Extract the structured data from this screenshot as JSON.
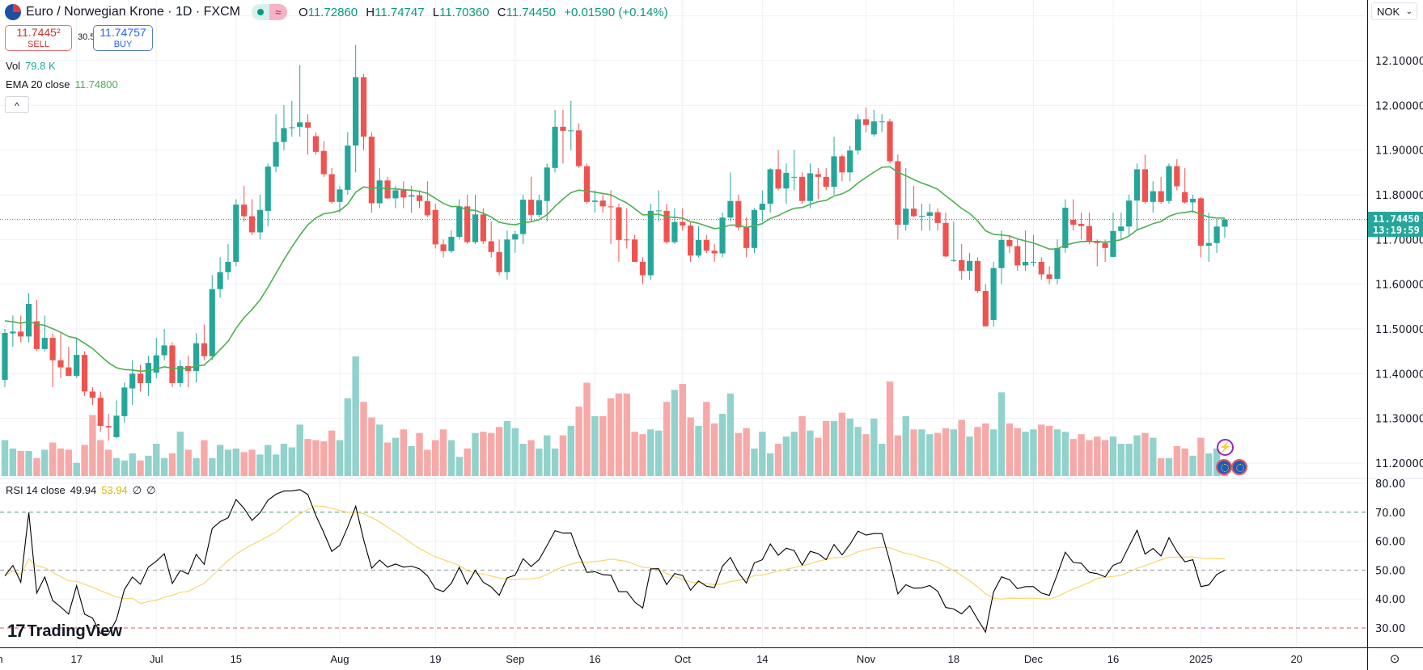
{
  "header": {
    "symbol_title": "Euro / Norwegian Krone · 1D · FXCM",
    "symbol_icon": "eur-nok-flag-icon",
    "market_status_icon": "market-open-dot-icon",
    "data_badge_icon": "delayed-data-wave-icon",
    "ohlc": {
      "o_label": "O",
      "o": "11.72860",
      "h_label": "H",
      "h": "11.74747",
      "l_label": "L",
      "l": "11.70360",
      "c_label": "C",
      "c": "11.74450",
      "change": "+0.01590 (+0.14%)"
    }
  },
  "trade": {
    "sell_price": "11.7445²",
    "sell_label": "SELL",
    "spread": "30.5",
    "buy_price": "11.74757",
    "buy_label": "BUY"
  },
  "legends": {
    "vol_label": "Vol",
    "vol_value": "79.8 K",
    "ema_label": "EMA 20 close",
    "ema_value": "11.74800",
    "rsi_label": "RSI 14 close",
    "rsi_value": "49.94",
    "rsi_ma_value": "53.94",
    "rsi_extra1": "∅",
    "rsi_extra2": "∅"
  },
  "collapse_icon": "^",
  "currency_select": "NOK",
  "current_price": {
    "price": "11.74450",
    "countdown": "13:19:59"
  },
  "brand": "TradingView",
  "settings_icon": "⊙",
  "event_icon": "⚡",
  "colors": {
    "up": "#26a69a",
    "down": "#ef5350",
    "ema": "#4caf50",
    "rsi": "#000000",
    "rsi_ma": "#f5d76e",
    "vol_up": "#92d2cc",
    "vol_down": "#f7a9a7"
  },
  "chart_data": {
    "type": "candlestick",
    "price_axis": {
      "ticks": [
        "12.10000",
        "12.00000",
        "11.90000",
        "11.80000",
        "11.70000",
        "11.60000",
        "11.50000",
        "11.40000",
        "11.30000",
        "11.20000"
      ],
      "range": [
        11.2,
        12.1
      ]
    },
    "rsi_axis": {
      "ticks": [
        "80.00",
        "70.00",
        "60.00",
        "50.00",
        "40.00",
        "30.00"
      ],
      "range": [
        30,
        80
      ],
      "bands": [
        70,
        50,
        30
      ]
    },
    "x_ticks": [
      {
        "label": "Jun",
        "bar": -1.3
      },
      {
        "label": "17",
        "bar": 9
      },
      {
        "label": "Jul",
        "bar": 19
      },
      {
        "label": "15",
        "bar": 29
      },
      {
        "label": "Aug",
        "bar": 42
      },
      {
        "label": "19",
        "bar": 54
      },
      {
        "label": "Sep",
        "bar": 64
      },
      {
        "label": "16",
        "bar": 74
      },
      {
        "label": "Oct",
        "bar": 85
      },
      {
        "label": "14",
        "bar": 95
      },
      {
        "label": "Nov",
        "bar": 108
      },
      {
        "label": "18",
        "bar": 119
      },
      {
        "label": "Dec",
        "bar": 129
      },
      {
        "label": "16",
        "bar": 139
      },
      {
        "label": "2025",
        "bar": 150
      },
      {
        "label": "20",
        "bar": 162
      }
    ],
    "ohlc": [
      [
        11.386,
        11.5,
        11.37,
        11.491
      ],
      [
        11.49,
        11.53,
        11.46,
        11.494
      ],
      [
        11.494,
        11.53,
        11.47,
        11.483
      ],
      [
        11.483,
        11.58,
        11.47,
        11.556
      ],
      [
        11.517,
        11.565,
        11.45,
        11.455
      ],
      [
        11.455,
        11.53,
        11.45,
        11.48
      ],
      [
        11.48,
        11.49,
        11.37,
        11.43
      ],
      [
        11.43,
        11.49,
        11.39,
        11.414
      ],
      [
        11.414,
        11.46,
        11.4,
        11.395
      ],
      [
        11.395,
        11.48,
        11.39,
        11.442
      ],
      [
        11.442,
        11.45,
        11.35,
        11.36
      ],
      [
        11.36,
        11.37,
        11.33,
        11.346
      ],
      [
        11.346,
        11.36,
        11.27,
        11.283
      ],
      [
        11.283,
        11.31,
        11.25,
        11.28
      ],
      [
        11.258,
        11.34,
        11.255,
        11.306
      ],
      [
        11.305,
        11.38,
        11.29,
        11.369
      ],
      [
        11.367,
        11.43,
        11.33,
        11.4
      ],
      [
        11.4,
        11.42,
        11.36,
        11.379
      ],
      [
        11.379,
        11.44,
        11.35,
        11.424
      ],
      [
        11.402,
        11.48,
        11.39,
        11.441
      ],
      [
        11.441,
        11.5,
        11.43,
        11.463
      ],
      [
        11.463,
        11.47,
        11.37,
        11.379
      ],
      [
        11.379,
        11.43,
        11.37,
        11.417
      ],
      [
        11.417,
        11.44,
        11.37,
        11.406
      ],
      [
        11.406,
        11.49,
        11.38,
        11.468
      ],
      [
        11.468,
        11.51,
        11.43,
        11.439
      ],
      [
        11.439,
        11.62,
        11.43,
        11.589
      ],
      [
        11.589,
        11.66,
        11.57,
        11.627
      ],
      [
        11.627,
        11.69,
        11.61,
        11.65
      ],
      [
        11.65,
        11.79,
        11.64,
        11.778
      ],
      [
        11.778,
        11.82,
        11.74,
        11.752
      ],
      [
        11.752,
        11.79,
        11.71,
        11.716
      ],
      [
        11.716,
        11.8,
        11.7,
        11.766
      ],
      [
        11.764,
        11.87,
        11.73,
        11.863
      ],
      [
        11.863,
        11.98,
        11.85,
        11.918
      ],
      [
        11.918,
        12.0,
        11.9,
        11.949
      ],
      [
        11.949,
        12.01,
        11.93,
        11.951
      ],
      [
        11.952,
        12.09,
        11.93,
        11.962
      ],
      [
        11.962,
        11.98,
        11.89,
        11.95
      ],
      [
        11.931,
        11.94,
        11.89,
        11.896
      ],
      [
        11.898,
        11.92,
        11.84,
        11.846
      ],
      [
        11.846,
        11.86,
        11.78,
        11.784
      ],
      [
        11.784,
        11.82,
        11.76,
        11.812
      ],
      [
        11.811,
        11.94,
        11.8,
        11.91
      ],
      [
        11.91,
        12.135,
        11.85,
        12.063
      ],
      [
        12.063,
        12.07,
        11.9,
        11.93
      ],
      [
        11.93,
        11.94,
        11.76,
        11.781
      ],
      [
        11.781,
        11.86,
        11.77,
        11.832
      ],
      [
        11.832,
        11.84,
        11.79,
        11.792
      ],
      [
        11.792,
        11.82,
        11.77,
        11.81
      ],
      [
        11.81,
        11.83,
        11.77,
        11.794
      ],
      [
        11.796,
        11.82,
        11.76,
        11.799
      ],
      [
        11.799,
        11.81,
        11.77,
        11.786
      ],
      [
        11.786,
        11.83,
        11.75,
        11.754
      ],
      [
        11.766,
        11.78,
        11.68,
        11.689
      ],
      [
        11.689,
        11.7,
        11.66,
        11.674
      ],
      [
        11.674,
        11.72,
        11.67,
        11.706
      ],
      [
        11.706,
        11.79,
        11.7,
        11.774
      ],
      [
        11.774,
        11.8,
        11.69,
        11.694
      ],
      [
        11.694,
        11.8,
        11.69,
        11.756
      ],
      [
        11.756,
        11.77,
        11.69,
        11.696
      ],
      [
        11.696,
        11.74,
        11.66,
        11.672
      ],
      [
        11.672,
        11.7,
        11.62,
        11.627
      ],
      [
        11.627,
        11.72,
        11.61,
        11.7
      ],
      [
        11.7,
        11.72,
        11.67,
        11.712
      ],
      [
        11.712,
        11.8,
        11.69,
        11.789
      ],
      [
        11.789,
        11.84,
        11.74,
        11.755
      ],
      [
        11.755,
        11.8,
        11.75,
        11.788
      ],
      [
        11.786,
        11.87,
        11.74,
        11.861
      ],
      [
        11.86,
        11.99,
        11.85,
        11.952
      ],
      [
        11.952,
        11.99,
        11.87,
        11.943
      ],
      [
        11.944,
        12.01,
        11.9,
        11.944
      ],
      [
        11.944,
        11.96,
        11.86,
        11.864
      ],
      [
        11.864,
        11.87,
        11.78,
        11.784
      ],
      [
        11.784,
        11.81,
        11.76,
        11.787
      ],
      [
        11.787,
        11.8,
        11.76,
        11.774
      ],
      [
        11.774,
        11.81,
        11.69,
        11.772
      ],
      [
        11.772,
        11.78,
        11.65,
        11.699
      ],
      [
        11.7,
        11.77,
        11.68,
        11.699
      ],
      [
        11.7,
        11.71,
        11.65,
        11.65
      ],
      [
        11.65,
        11.66,
        11.6,
        11.62
      ],
      [
        11.62,
        11.78,
        11.61,
        11.764
      ],
      [
        11.765,
        11.81,
        11.74,
        11.765
      ],
      [
        11.764,
        11.78,
        11.69,
        11.694
      ],
      [
        11.694,
        11.77,
        11.69,
        11.739
      ],
      [
        11.739,
        11.77,
        11.72,
        11.731
      ],
      [
        11.731,
        11.74,
        11.65,
        11.664
      ],
      [
        11.664,
        11.73,
        11.66,
        11.699
      ],
      [
        11.699,
        11.71,
        11.67,
        11.675
      ],
      [
        11.675,
        11.69,
        11.65,
        11.669
      ],
      [
        11.669,
        11.76,
        11.66,
        11.749
      ],
      [
        11.749,
        11.85,
        11.74,
        11.786
      ],
      [
        11.786,
        11.8,
        11.72,
        11.727
      ],
      [
        11.727,
        11.75,
        11.66,
        11.681
      ],
      [
        11.681,
        11.77,
        11.67,
        11.766
      ],
      [
        11.766,
        11.81,
        11.74,
        11.78
      ],
      [
        11.78,
        11.86,
        11.76,
        11.857
      ],
      [
        11.857,
        11.9,
        11.81,
        11.814
      ],
      [
        11.814,
        11.87,
        11.78,
        11.849
      ],
      [
        11.84,
        11.9,
        11.81,
        11.84
      ],
      [
        11.84,
        11.85,
        11.78,
        11.786
      ],
      [
        11.786,
        11.87,
        11.77,
        11.848
      ],
      [
        11.846,
        11.86,
        11.79,
        11.84
      ],
      [
        11.84,
        11.86,
        11.81,
        11.818
      ],
      [
        11.818,
        11.93,
        11.8,
        11.886
      ],
      [
        11.886,
        11.89,
        11.83,
        11.85
      ],
      [
        11.85,
        11.91,
        11.83,
        11.899
      ],
      [
        11.899,
        11.98,
        11.89,
        11.969
      ],
      [
        11.969,
        11.995,
        11.94,
        11.956
      ],
      [
        11.935,
        11.99,
        11.93,
        11.964
      ],
      [
        11.964,
        11.98,
        11.94,
        11.964
      ],
      [
        11.964,
        11.97,
        11.87,
        11.875
      ],
      [
        11.875,
        11.89,
        11.7,
        11.733
      ],
      [
        11.733,
        11.86,
        11.72,
        11.769
      ],
      [
        11.769,
        11.82,
        11.75,
        11.752
      ],
      [
        11.753,
        11.78,
        11.72,
        11.753
      ],
      [
        11.753,
        11.78,
        11.72,
        11.761
      ],
      [
        11.761,
        11.77,
        11.72,
        11.737
      ],
      [
        11.737,
        11.76,
        11.66,
        11.662
      ],
      [
        11.654,
        11.74,
        11.65,
        11.654
      ],
      [
        11.654,
        11.69,
        11.61,
        11.63
      ],
      [
        11.63,
        11.67,
        11.61,
        11.652
      ],
      [
        11.652,
        11.66,
        11.58,
        11.585
      ],
      [
        11.585,
        11.6,
        11.505,
        11.506
      ],
      [
        11.52,
        11.65,
        11.505,
        11.636
      ],
      [
        11.636,
        11.72,
        11.6,
        11.699
      ],
      [
        11.699,
        11.71,
        11.67,
        11.685
      ],
      [
        11.685,
        11.7,
        11.63,
        11.642
      ],
      [
        11.642,
        11.72,
        11.63,
        11.65
      ],
      [
        11.65,
        11.71,
        11.64,
        11.65
      ],
      [
        11.65,
        11.66,
        11.61,
        11.622
      ],
      [
        11.622,
        11.64,
        11.6,
        11.612
      ],
      [
        11.612,
        11.7,
        11.6,
        11.681
      ],
      [
        11.681,
        11.79,
        11.67,
        11.771
      ],
      [
        11.744,
        11.79,
        11.72,
        11.733
      ],
      [
        11.735,
        11.76,
        11.7,
        11.73
      ],
      [
        11.73,
        11.76,
        11.69,
        11.697
      ],
      [
        11.697,
        11.7,
        11.64,
        11.692
      ],
      [
        11.692,
        11.7,
        11.65,
        11.681
      ],
      [
        11.661,
        11.76,
        11.66,
        11.719
      ],
      [
        11.719,
        11.76,
        11.7,
        11.729
      ],
      [
        11.729,
        11.8,
        11.71,
        11.787
      ],
      [
        11.787,
        11.87,
        11.72,
        11.857
      ],
      [
        11.857,
        11.89,
        11.78,
        11.784
      ],
      [
        11.784,
        11.83,
        11.76,
        11.808
      ],
      [
        11.808,
        11.84,
        11.78,
        11.784
      ],
      [
        11.786,
        11.87,
        11.78,
        11.864
      ],
      [
        11.864,
        11.88,
        11.81,
        11.819
      ],
      [
        11.806,
        11.86,
        11.78,
        11.783
      ],
      [
        11.783,
        11.8,
        11.76,
        11.791
      ],
      [
        11.792,
        11.795,
        11.66,
        11.686
      ],
      [
        11.686,
        11.76,
        11.65,
        11.692
      ],
      [
        11.692,
        11.745,
        11.67,
        11.729
      ],
      [
        11.7286,
        11.74747,
        11.7036,
        11.7445
      ]
    ],
    "volume": [
      30,
      23,
      21,
      21,
      15,
      22,
      28,
      23,
      22,
      11,
      26,
      51,
      30,
      22,
      15,
      13,
      19,
      13,
      17,
      27,
      15,
      19,
      37,
      22,
      15,
      30,
      15,
      26,
      22,
      23,
      20,
      22,
      18,
      26,
      18,
      27,
      24,
      43,
      31,
      30,
      29,
      38,
      30,
      65,
      100,
      62,
      49,
      43,
      28,
      32,
      39,
      25,
      36,
      22,
      30,
      39,
      30,
      16,
      23,
      36,
      37,
      36,
      41,
      46,
      40,
      27,
      30,
      23,
      34,
      23,
      34,
      42,
      58,
      78,
      50,
      50,
      65,
      69,
      69,
      37,
      35,
      39,
      38,
      62,
      72,
      77,
      49,
      42,
      62,
      44,
      52,
      69,
      36,
      40,
      23,
      37,
      19,
      27,
      33,
      37,
      50,
      38,
      32,
      46,
      46,
      53,
      48,
      41,
      35,
      48,
      27,
      79,
      34,
      50,
      39,
      39,
      35,
      36,
      40,
      39,
      47,
      33,
      41,
      44,
      39,
      70,
      44,
      40,
      37,
      39,
      43,
      42,
      39,
      37,
      31,
      35,
      30,
      33,
      30,
      33,
      27,
      27,
      34,
      36,
      32,
      15,
      15,
      25,
      23,
      17,
      32,
      19,
      23,
      9
    ],
    "indicators": {
      "ema_period": 20,
      "rsi_period": 14,
      "rsi_ma_period": 14
    }
  }
}
